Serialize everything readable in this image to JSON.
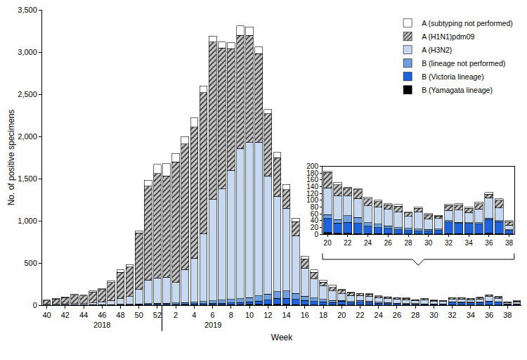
{
  "chart_data": [
    {
      "type": "bar",
      "x_label": "Week",
      "y_label": "No. of positive specimens",
      "annotations": [
        "2018",
        "2019"
      ],
      "categories": [
        "40",
        null,
        "42",
        null,
        "44",
        null,
        "46",
        null,
        "48",
        null,
        "50",
        null,
        "52",
        null,
        "2",
        null,
        "4",
        null,
        "6",
        null,
        "8",
        null,
        "10",
        null,
        "12",
        null,
        "14",
        null,
        "16",
        null,
        "18",
        null,
        "20",
        null,
        "22",
        null,
        "24",
        null,
        "26",
        null,
        "28",
        null,
        "30",
        null,
        "32",
        null,
        "34",
        null,
        "36",
        null,
        "38",
        null
      ],
      "series": [
        {
          "name": "B (Yamagata lineage)",
          "color": "#000000",
          "values": [
            1,
            1,
            1,
            1,
            1,
            1,
            1,
            1,
            2,
            2,
            2,
            3,
            3,
            3,
            4,
            4,
            5,
            5,
            6,
            6,
            7,
            8,
            9,
            10,
            10,
            10,
            10,
            8,
            5,
            4,
            3,
            3,
            5,
            3,
            3,
            2,
            2,
            2,
            2,
            1,
            1,
            1,
            1,
            1,
            2,
            2,
            2,
            2,
            3,
            2,
            1,
            1
          ]
        },
        {
          "name": "B (Victoria lineage)",
          "color": "#1f63dc",
          "values": [
            1,
            1,
            1,
            2,
            2,
            2,
            2,
            3,
            3,
            4,
            5,
            6,
            6,
            7,
            8,
            10,
            12,
            14,
            16,
            18,
            20,
            25,
            30,
            40,
            50,
            70,
            70,
            60,
            50,
            40,
            35,
            30,
            42,
            30,
            32,
            30,
            22,
            18,
            15,
            12,
            10,
            8,
            8,
            10,
            34,
            30,
            30,
            28,
            40,
            35,
            10,
            12
          ]
        },
        {
          "name": "B (lineage not performed)",
          "color": "#6f9fdc",
          "values": [
            1,
            2,
            2,
            2,
            2,
            3,
            3,
            4,
            5,
            6,
            8,
            10,
            12,
            12,
            15,
            18,
            20,
            25,
            30,
            35,
            40,
            45,
            50,
            60,
            70,
            80,
            90,
            70,
            50,
            40,
            30,
            25,
            11,
            10,
            20,
            18,
            10,
            10,
            8,
            7,
            6,
            6,
            5,
            4,
            4,
            3,
            2,
            4,
            5,
            3,
            2,
            3
          ]
        },
        {
          "name": "A (H3N2)",
          "color": "#c6d9f1",
          "values": [
            6,
            8,
            10,
            12,
            15,
            22,
            30,
            50,
            70,
            90,
            170,
            280,
            300,
            310,
            240,
            390,
            520,
            800,
            1200,
            1320,
            1530,
            1780,
            1840,
            1820,
            1400,
            1130,
            980,
            680,
            335,
            226,
            162,
            112,
            79,
            70,
            58,
            55,
            50,
            50,
            48,
            45,
            36,
            50,
            30,
            32,
            30,
            36,
            30,
            40,
            60,
            38,
            14,
            20
          ]
        },
        {
          "name": "A (H1N1)pdm09",
          "color": "#c8c8c8",
          "marker": "hatched",
          "values": [
            45,
            60,
            76,
            100,
            90,
            130,
            150,
            210,
            310,
            350,
            670,
            1110,
            1239,
            1198,
            1433,
            1488,
            1553,
            1676,
            1868,
            1671,
            1443,
            1342,
            1271,
            1050,
            740,
            460,
            220,
            170,
            110,
            80,
            45,
            40,
            45,
            33,
            22,
            26,
            20,
            16,
            14,
            18,
            10,
            12,
            14,
            7,
            15,
            15,
            12,
            16,
            10,
            22,
            10,
            12
          ]
        },
        {
          "name": "A (subtyping not performed)",
          "color": "#ffffff",
          "values": [
            6,
            8,
            10,
            13,
            10,
            12,
            14,
            22,
            30,
            28,
            25,
            71,
            110,
            150,
            100,
            90,
            110,
            80,
            70,
            70,
            70,
            110,
            100,
            80,
            50,
            60,
            60,
            42,
            30,
            30,
            25,
            30,
            3,
            7,
            3,
            3,
            6,
            4,
            3,
            5,
            2,
            3,
            3,
            2,
            4,
            4,
            4,
            5,
            5,
            4,
            3,
            7
          ]
        }
      ],
      "ylim": [
        0,
        3500
      ],
      "yticks": [
        0,
        500,
        {
          "value": 1000,
          "label": "1,000"
        },
        {
          "value": 1500,
          "label": "1,500"
        },
        {
          "value": 2000,
          "label": "2,000"
        },
        {
          "value": 2500,
          "label": "2,500"
        },
        {
          "value": 3000,
          "label": "3,000"
        },
        {
          "value": 3500,
          "label": "3,500"
        }
      ],
      "grid": false,
      "legend": "upper right",
      "stacked": true
    },
    {
      "type": "bar",
      "categories": [
        "20",
        null,
        "22",
        null,
        "24",
        null,
        "26",
        null,
        "28",
        null,
        "30",
        null,
        "32",
        null,
        "34",
        null,
        "36",
        null,
        "38"
      ],
      "series": [
        {
          "name": "B (Yamagata lineage)",
          "color": "#000000",
          "values": [
            5,
            3,
            3,
            2,
            2,
            2,
            2,
            1,
            1,
            1,
            1,
            1,
            2,
            2,
            2,
            2,
            3,
            2,
            1
          ]
        },
        {
          "name": "B (Victoria lineage)",
          "color": "#1f63dc",
          "values": [
            42,
            30,
            32,
            30,
            22,
            18,
            15,
            12,
            10,
            8,
            8,
            10,
            34,
            30,
            30,
            28,
            40,
            35,
            10
          ]
        },
        {
          "name": "B (lineage not performed)",
          "color": "#6f9fdc",
          "values": [
            11,
            10,
            20,
            18,
            10,
            10,
            8,
            7,
            6,
            6,
            5,
            4,
            4,
            3,
            2,
            4,
            5,
            3,
            2
          ]
        },
        {
          "name": "A (H3N2)",
          "color": "#c6d9f1",
          "values": [
            79,
            70,
            58,
            55,
            50,
            50,
            48,
            45,
            36,
            50,
            30,
            32,
            30,
            36,
            30,
            40,
            60,
            38,
            14
          ]
        },
        {
          "name": "A (H1N1)pdm09",
          "color": "#c8c8c8",
          "marker": "hatched",
          "values": [
            45,
            33,
            22,
            26,
            20,
            16,
            14,
            18,
            10,
            12,
            14,
            7,
            15,
            15,
            12,
            16,
            10,
            22,
            10
          ]
        },
        {
          "name": "A (subtyping not performed)",
          "color": "#ffffff",
          "values": [
            3,
            7,
            3,
            3,
            6,
            4,
            3,
            5,
            2,
            3,
            3,
            2,
            4,
            4,
            4,
            5,
            5,
            4,
            3
          ]
        }
      ],
      "ylim": [
        0,
        200
      ],
      "yticks": [
        0,
        20,
        40,
        60,
        80,
        100,
        120,
        140,
        160,
        180,
        200
      ],
      "grid": false,
      "stacked": true
    }
  ]
}
